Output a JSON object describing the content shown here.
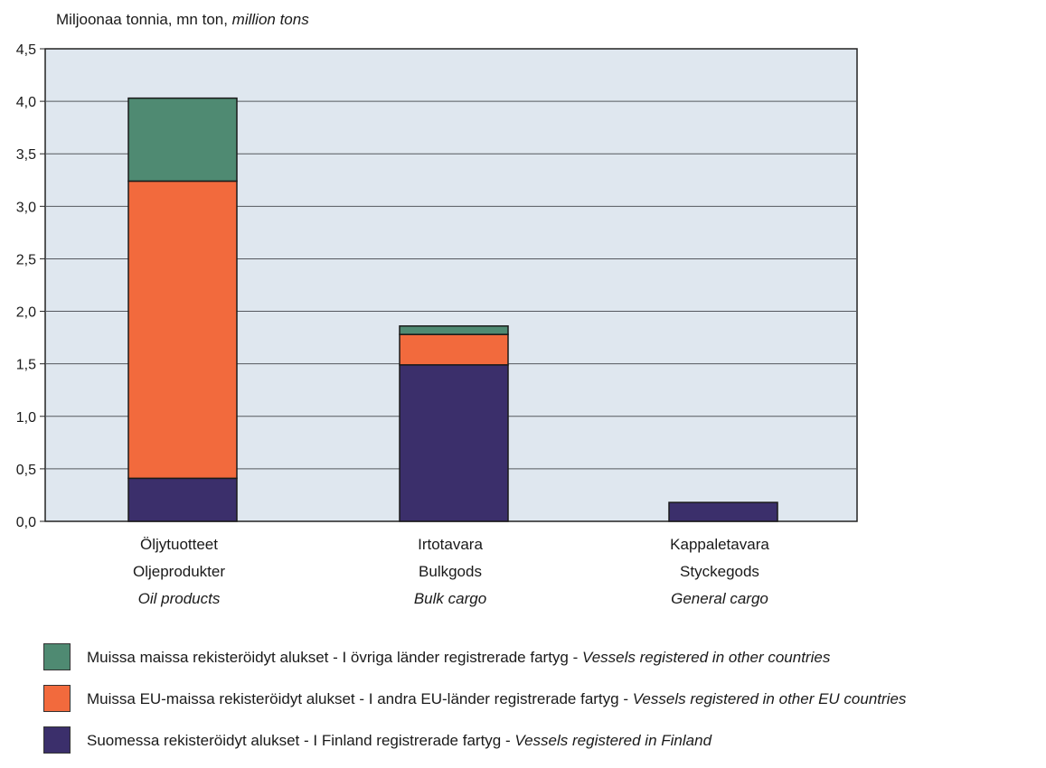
{
  "chart_data": {
    "type": "bar",
    "stacked": true,
    "ylabel": {
      "fi": "Miljoonaa tonnia, mn ton, ",
      "en": "million tons"
    },
    "ylim": [
      0,
      4.5
    ],
    "yticks": [
      "0,0",
      "0,5",
      "1,0",
      "1,5",
      "2,0",
      "2,5",
      "3,0",
      "3,5",
      "4,0",
      "4,5"
    ],
    "grid": true,
    "categories": [
      {
        "fi": "Öljytuotteet",
        "sv": "Oljeprodukter",
        "en": "Oil products"
      },
      {
        "fi": "Irtotavara",
        "sv": "Bulkgods",
        "en": "Bulk cargo"
      },
      {
        "fi": "Kappaletavara",
        "sv": "Styckegods",
        "en": "General cargo"
      }
    ],
    "series": [
      {
        "name_fi_sv": "Suomessa rekisteröidyt alukset - I Finland registrerade fartyg - ",
        "name_en": "Vessels registered in Finland",
        "color": "#3b2f6b",
        "values": [
          0.41,
          1.49,
          0.18
        ]
      },
      {
        "name_fi_sv": "Muissa EU-maissa rekisteröidyt alukset - I andra EU-länder registrerade fartyg - ",
        "name_en": "Vessels registered in other EU countries",
        "color": "#f26a3d",
        "values": [
          2.83,
          0.29,
          0.0
        ]
      },
      {
        "name_fi_sv": "Muissa maissa rekisteröidyt alukset - I övriga länder registrerade fartyg - ",
        "name_en": "Vessels registered in other countries",
        "color": "#4f8a72",
        "values": [
          0.79,
          0.08,
          0.0
        ]
      }
    ],
    "legend_position": "bottom",
    "plot_background": "#dfe7ef"
  }
}
